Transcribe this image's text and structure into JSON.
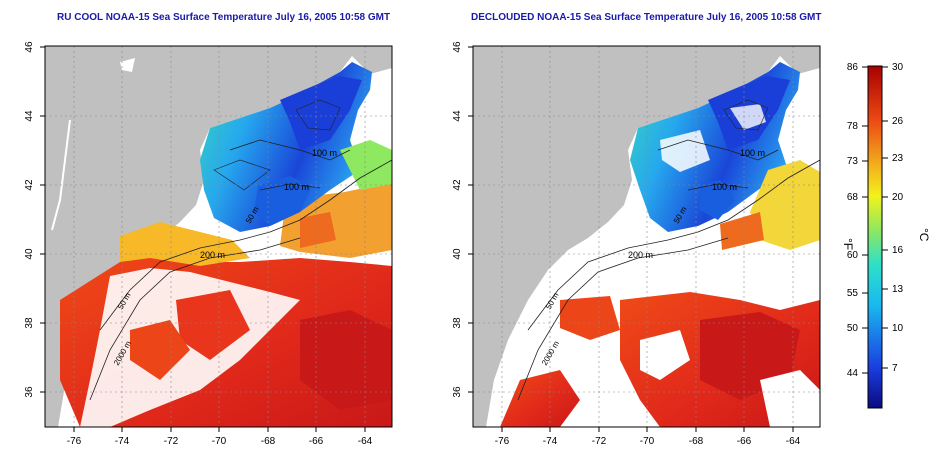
{
  "titles": {
    "left": "RU COOL NOAA-15 Sea Surface Temperature July 16, 2005 10:58 GMT",
    "right": "DECLOUDED NOAA-15 Sea Surface Temperature July 16, 2005 10:58 GMT"
  },
  "axes": {
    "x_ticks": [
      "-76",
      "-74",
      "-72",
      "-70",
      "-68",
      "-66",
      "-64"
    ],
    "y_ticks": [
      "46",
      "44",
      "42",
      "40",
      "38",
      "36"
    ]
  },
  "contour_labels": {
    "left": [
      "100 m",
      "100 m",
      "50 m",
      "200 m",
      "50 m",
      "2000 m"
    ],
    "right": [
      "100 m",
      "100 m",
      "50 m",
      "200 m",
      "50 m",
      "2000 m"
    ]
  },
  "colorbar": {
    "f_ticks": [
      "86",
      "78",
      "73",
      "68",
      "60",
      "55",
      "50",
      "44"
    ],
    "c_ticks": [
      "30",
      "26",
      "23",
      "20",
      "16",
      "13",
      "10",
      "7"
    ],
    "f_unit": "°F",
    "c_unit": "°C"
  },
  "colors": {
    "land": "#c0c0c0",
    "title": "#1a1aa8",
    "cold": "#1a3fd8",
    "warm": "#d8231a"
  }
}
